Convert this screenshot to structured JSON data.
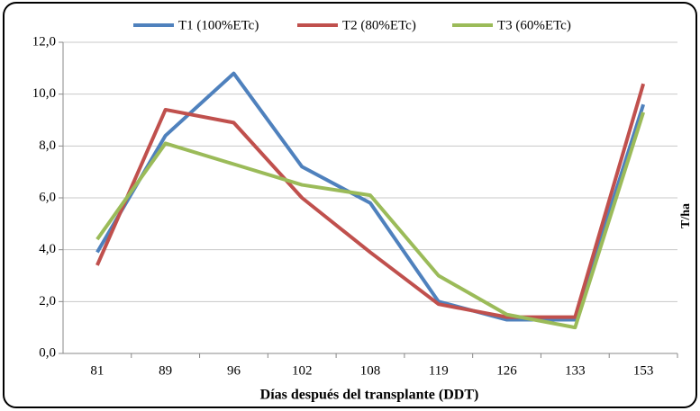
{
  "chart_data": {
    "type": "line",
    "x_label": "Días después del transplante (DDT)",
    "y_label": "T/ha",
    "categories": [
      "81",
      "89",
      "96",
      "102",
      "108",
      "119",
      "126",
      "133",
      "153"
    ],
    "series": [
      {
        "name": "T1 (100%ETc)",
        "color": "#4f81bd",
        "values": [
          3.9,
          8.4,
          10.8,
          7.2,
          5.8,
          2.0,
          1.3,
          1.3,
          9.6
        ]
      },
      {
        "name": "T2 (80%ETc)",
        "color": "#c0504d",
        "values": [
          3.4,
          9.4,
          8.9,
          6.0,
          3.9,
          1.9,
          1.4,
          1.4,
          10.4
        ]
      },
      {
        "name": "T3 (60%ETc)",
        "color": "#9bbb59",
        "values": [
          4.4,
          8.1,
          7.3,
          6.5,
          6.1,
          3.0,
          1.5,
          1.0,
          9.3
        ]
      }
    ],
    "ylim": [
      0,
      12
    ],
    "yticks": [
      {
        "value": 0,
        "label": "0,0"
      },
      {
        "value": 2,
        "label": "2,0"
      },
      {
        "value": 4,
        "label": "4,0"
      },
      {
        "value": 6,
        "label": "6,0"
      },
      {
        "value": 8,
        "label": "8,0"
      },
      {
        "value": 10,
        "label": "10,0"
      },
      {
        "value": 12,
        "label": "12,0"
      }
    ],
    "grid": true
  }
}
